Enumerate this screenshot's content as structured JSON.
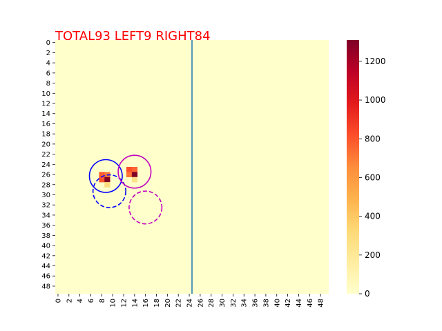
{
  "chart_data": {
    "type": "heatmap",
    "title": "TOTAL93  LEFT9 RIGHT84",
    "title_color": "#ff0000",
    "grid_size": 50,
    "x_tick_labels": [
      "0",
      "2",
      "4",
      "6",
      "8",
      "10",
      "12",
      "14",
      "16",
      "18",
      "20",
      "22",
      "24",
      "26",
      "28",
      "30",
      "32",
      "34",
      "36",
      "38",
      "40",
      "42",
      "44",
      "46",
      "48"
    ],
    "y_tick_labels": [
      "0",
      "2",
      "4",
      "6",
      "8",
      "10",
      "12",
      "14",
      "16",
      "18",
      "20",
      "22",
      "24",
      "26",
      "28",
      "30",
      "32",
      "34",
      "36",
      "38",
      "40",
      "42",
      "44",
      "46",
      "48"
    ],
    "colorbar": {
      "colormap": "YlOrRd",
      "range": [
        0,
        1310
      ],
      "tick_labels": [
        "0",
        "200",
        "400",
        "600",
        "800",
        "1000",
        "1200"
      ],
      "tick_values": [
        0,
        200,
        400,
        600,
        800,
        1000,
        1200
      ]
    },
    "background_value": 0,
    "cells": [
      {
        "col": 8,
        "row": 26,
        "value": 780
      },
      {
        "col": 9,
        "row": 26,
        "value": 700
      },
      {
        "col": 8,
        "row": 27,
        "value": 800
      },
      {
        "col": 9,
        "row": 27,
        "value": 1310
      },
      {
        "col": 9,
        "row": 28,
        "value": 300
      },
      {
        "col": 13,
        "row": 25,
        "value": 820
      },
      {
        "col": 14,
        "row": 25,
        "value": 760
      },
      {
        "col": 13,
        "row": 26,
        "value": 720
      },
      {
        "col": 14,
        "row": 26,
        "value": 1310
      },
      {
        "col": 14,
        "row": 27,
        "value": 250
      }
    ],
    "vertical_line_x": 25,
    "vertical_line_color": "#1f77b4",
    "circles": [
      {
        "cx": 9.25,
        "cy": 26.8,
        "r": 3,
        "color": "#0000ff",
        "dashed": false
      },
      {
        "cx": 9.9,
        "cy": 29.8,
        "r": 3,
        "color": "#0000ff",
        "dashed": true
      },
      {
        "cx": 14.5,
        "cy": 25.95,
        "r": 3,
        "color": "#bf00bf",
        "dashed": false
      },
      {
        "cx": 16.5,
        "cy": 33.0,
        "r": 3,
        "color": "#bf00bf",
        "dashed": true
      }
    ]
  }
}
